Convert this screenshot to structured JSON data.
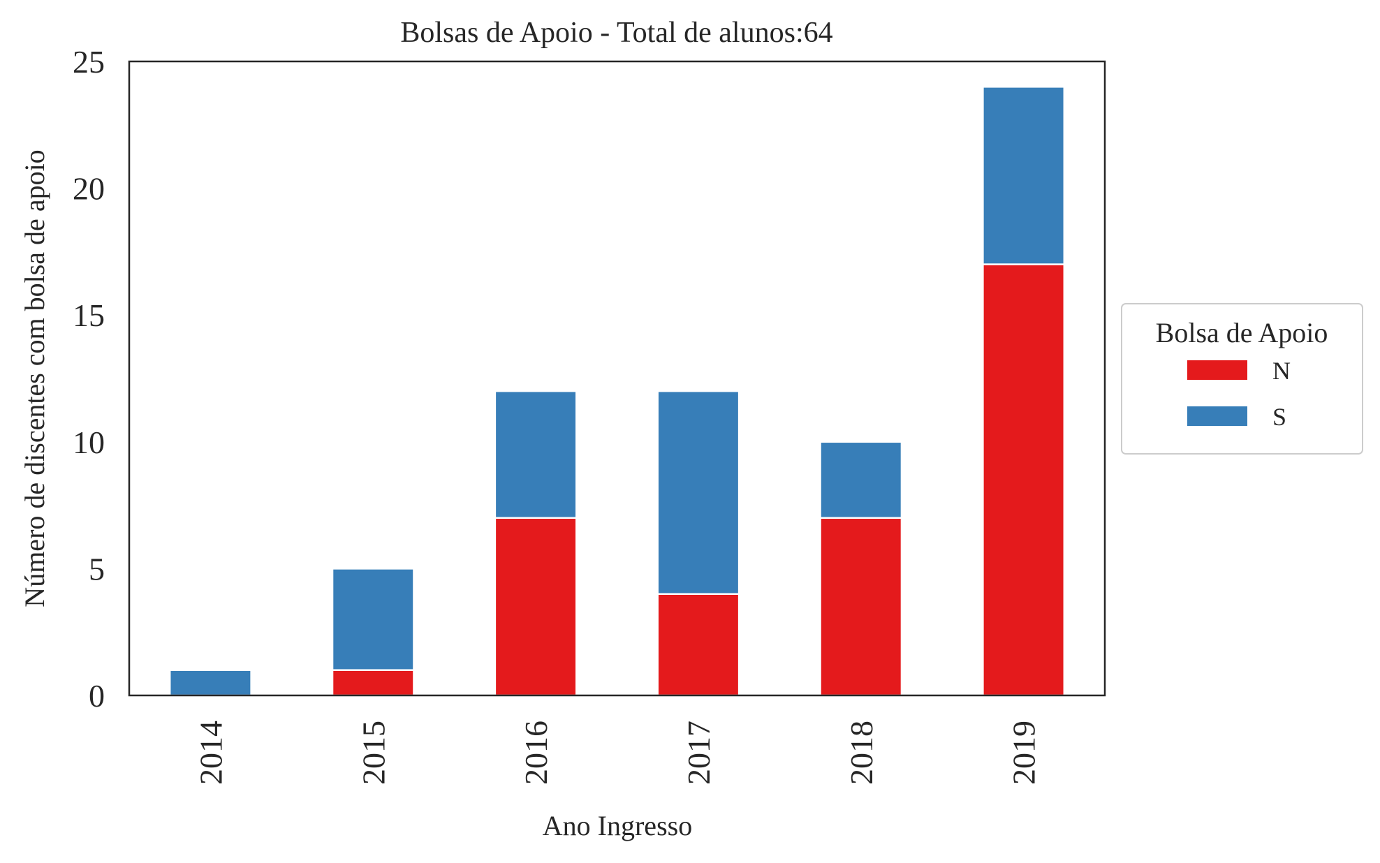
{
  "chart_data": {
    "type": "bar",
    "stacked": true,
    "title": "Bolsas de Apoio - Total de alunos:64",
    "xlabel": "Ano Ingresso",
    "ylabel": "Número de discentes com bolsa de apoio",
    "categories": [
      "2014",
      "2015",
      "2016",
      "2017",
      "2018",
      "2019"
    ],
    "series": [
      {
        "name": "N",
        "color": "#e41a1c",
        "values": [
          0,
          1,
          7,
          4,
          7,
          17
        ]
      },
      {
        "name": "S",
        "color": "#377eb8",
        "values": [
          1,
          4,
          5,
          8,
          3,
          7
        ]
      }
    ],
    "ylim": [
      0,
      25
    ],
    "yticks": [
      "0",
      "5",
      "10",
      "15",
      "20",
      "25"
    ],
    "grid": false,
    "legend": {
      "title": "Bolsa de Apoio",
      "placement": "center-right outside"
    }
  }
}
